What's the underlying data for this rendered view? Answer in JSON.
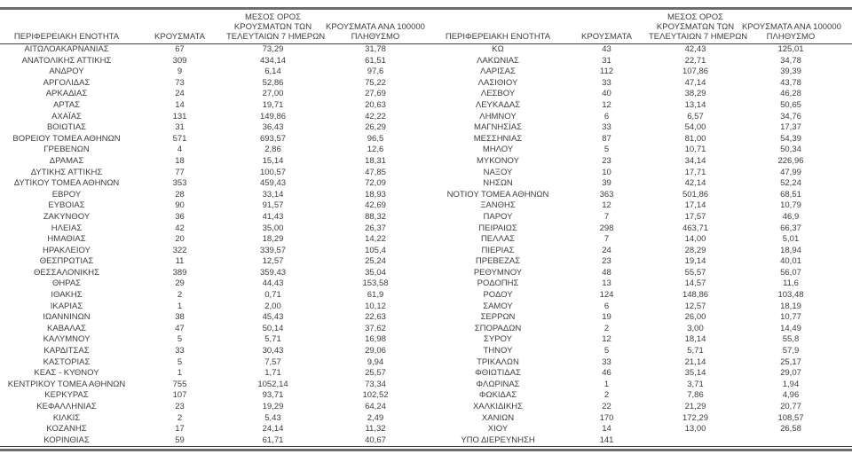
{
  "chart_data": {
    "type": "table",
    "title": "",
    "header": {
      "region": "ΠΕΡΙΦΕΡΕΙΑΚΗ ΕΝΟΤΗΤΑ",
      "cases": "ΚΡΟΥΣΜΑΤΑ",
      "avg7_line1": "ΜΕΣΟΣ ΟΡΟΣ",
      "avg7_line2": "ΚΡΟΥΣΜΑΤΩΝ ΤΩΝ",
      "avg7_line3": "ΤΕΛΕΥΤΑΙΩΝ 7 ΗΜΕΡΩΝ",
      "per100k_line1": "ΚΡΟΥΣΜΑΤΑ ΑΝΑ 100000",
      "per100k_line2": "ΠΛΗΘΥΣΜΟ"
    },
    "columns": [
      "ΠΕΡΙΦΕΡΕΙΑΚΗ ΕΝΟΤΗΤΑ",
      "ΚΡΟΥΣΜΑΤΑ",
      "ΜΕΣΟΣ ΟΡΟΣ ΚΡΟΥΣΜΑΤΩΝ ΤΩΝ ΤΕΛΕΥΤΑΙΩΝ 7 ΗΜΕΡΩΝ",
      "ΚΡΟΥΣΜΑΤΑ ΑΝΑ 100000 ΠΛΗΘΥΣΜΟ"
    ],
    "left_rows": [
      [
        "ΑΙΤΩΛΟΑΚΑΡΝΑΝΙΑΣ",
        "67",
        "73,29",
        "31,78"
      ],
      [
        "ΑΝΑΤΟΛΙΚΗΣ ΑΤΤΙΚΗΣ",
        "309",
        "434,14",
        "61,51"
      ],
      [
        "ΑΝΔΡΟΥ",
        "9",
        "6,14",
        "97,6"
      ],
      [
        "ΑΡΓΟΛΙΔΑΣ",
        "73",
        "52,86",
        "75,22"
      ],
      [
        "ΑΡΚΑΔΙΑΣ",
        "24",
        "27,00",
        "27,69"
      ],
      [
        "ΑΡΤΑΣ",
        "14",
        "19,71",
        "20,63"
      ],
      [
        "ΑΧΑΪΑΣ",
        "131",
        "149,86",
        "42,22"
      ],
      [
        "ΒΟΙΩΤΙΑΣ",
        "31",
        "36,43",
        "26,29"
      ],
      [
        "ΒΟΡΕΙΟΥ ΤΟΜΕΑ ΑΘΗΝΩΝ",
        "571",
        "693,57",
        "96,5"
      ],
      [
        "ΓΡΕΒΕΝΩΝ",
        "4",
        "2,86",
        "12,6"
      ],
      [
        "ΔΡΑΜΑΣ",
        "18",
        "15,14",
        "18,31"
      ],
      [
        "ΔΥΤΙΚΗΣ ΑΤΤΙΚΗΣ",
        "77",
        "100,57",
        "47,85"
      ],
      [
        "ΔΥΤΙΚΟΥ ΤΟΜΕΑ ΑΘΗΝΩΝ",
        "353",
        "459,43",
        "72,09"
      ],
      [
        "ΕΒΡΟΥ",
        "28",
        "33,14",
        "18,93"
      ],
      [
        "ΕΥΒΟΙΑΣ",
        "90",
        "91,57",
        "42,69"
      ],
      [
        "ΖΑΚΥΝΘΟΥ",
        "36",
        "41,43",
        "88,32"
      ],
      [
        "ΗΛΕΙΑΣ",
        "42",
        "35,00",
        "26,37"
      ],
      [
        "ΗΜΑΘΙΑΣ",
        "20",
        "18,29",
        "14,22"
      ],
      [
        "ΗΡΑΚΛΕΙΟΥ",
        "322",
        "339,57",
        "105,4"
      ],
      [
        "ΘΕΣΠΡΩΤΙΑΣ",
        "11",
        "12,57",
        "25,24"
      ],
      [
        "ΘΕΣΣΑΛΟΝΙΚΗΣ",
        "389",
        "359,43",
        "35,04"
      ],
      [
        "ΘΗΡΑΣ",
        "29",
        "44,43",
        "153,58"
      ],
      [
        "ΙΘΑΚΗΣ",
        "2",
        "0,71",
        "61,9"
      ],
      [
        "ΙΚΑΡΙΑΣ",
        "1",
        "2,00",
        "10,12"
      ],
      [
        "ΙΩΑΝΝΙΝΩΝ",
        "38",
        "45,43",
        "22,63"
      ],
      [
        "ΚΑΒΑΛΑΣ",
        "47",
        "50,14",
        "37,62"
      ],
      [
        "ΚΑΛΥΜΝΟΥ",
        "5",
        "5,71",
        "16,98"
      ],
      [
        "ΚΑΡΔΙΤΣΑΣ",
        "33",
        "30,43",
        "29,06"
      ],
      [
        "ΚΑΣΤΟΡΙΑΣ",
        "5",
        "7,57",
        "9,94"
      ],
      [
        "ΚΕΑΣ - ΚΥΘΝΟΥ",
        "1",
        "1,71",
        "25,57"
      ],
      [
        "ΚΕΝΤΡΙΚΟΥ ΤΟΜΕΑ ΑΘΗΝΩΝ",
        "755",
        "1052,14",
        "73,34"
      ],
      [
        "ΚΕΡΚΥΡΑΣ",
        "107",
        "93,71",
        "102,52"
      ],
      [
        "ΚΕΦΑΛΛΗΝΙΑΣ",
        "23",
        "19,29",
        "64,24"
      ],
      [
        "ΚΙΛΚΙΣ",
        "2",
        "5,43",
        "2,49"
      ],
      [
        "ΚΟΖΑΝΗΣ",
        "17",
        "24,14",
        "11,32"
      ],
      [
        "ΚΟΡΙΝΘΙΑΣ",
        "59",
        "61,71",
        "40,67"
      ]
    ],
    "right_rows": [
      [
        "ΚΩ",
        "43",
        "42,43",
        "125,01"
      ],
      [
        "ΛΑΚΩΝΙΑΣ",
        "31",
        "22,71",
        "34,78"
      ],
      [
        "ΛΑΡΙΣΑΣ",
        "112",
        "107,86",
        "39,39"
      ],
      [
        "ΛΑΣΙΘΙΟΥ",
        "33",
        "47,14",
        "43,78"
      ],
      [
        "ΛΕΣΒΟΥ",
        "40",
        "38,29",
        "46,28"
      ],
      [
        "ΛΕΥΚΑΔΑΣ",
        "12",
        "13,14",
        "50,65"
      ],
      [
        "ΛΗΜΝΟΥ",
        "6",
        "6,57",
        "34,76"
      ],
      [
        "ΜΑΓΝΗΣΙΑΣ",
        "33",
        "54,00",
        "17,37"
      ],
      [
        "ΜΕΣΣΗΝΙΑΣ",
        "87",
        "81,00",
        "54,39"
      ],
      [
        "ΜΗΛΟΥ",
        "5",
        "10,71",
        "50,34"
      ],
      [
        "ΜΥΚΟΝΟΥ",
        "23",
        "34,14",
        "226,96"
      ],
      [
        "ΝΑΞΟΥ",
        "10",
        "17,71",
        "47,99"
      ],
      [
        "ΝΗΣΩΝ",
        "39",
        "42,14",
        "52,24"
      ],
      [
        "ΝΟΤΙΟΥ ΤΟΜΕΑ ΑΘΗΝΩΝ",
        "363",
        "501,86",
        "68,51"
      ],
      [
        "ΞΑΝΘΗΣ",
        "12",
        "17,14",
        "10,79"
      ],
      [
        "ΠΑΡΟΥ",
        "7",
        "17,57",
        "46,9"
      ],
      [
        "ΠΕΙΡΑΙΩΣ",
        "298",
        "463,71",
        "66,37"
      ],
      [
        "ΠΕΛΛΑΣ",
        "7",
        "14,00",
        "5,01"
      ],
      [
        "ΠΙΕΡΙΑΣ",
        "24",
        "28,29",
        "18,94"
      ],
      [
        "ΠΡΕΒΕΖΑΣ",
        "23",
        "19,14",
        "40,01"
      ],
      [
        "ΡΕΘΥΜΝΟΥ",
        "48",
        "55,57",
        "56,07"
      ],
      [
        "ΡΟΔΟΠΗΣ",
        "13",
        "14,57",
        "11,6"
      ],
      [
        "ΡΟΔΟΥ",
        "124",
        "148,86",
        "103,48"
      ],
      [
        "ΣΑΜΟΥ",
        "6",
        "12,57",
        "18,19"
      ],
      [
        "ΣΕΡΡΩΝ",
        "19",
        "26,00",
        "10,77"
      ],
      [
        "ΣΠΟΡΑΔΩΝ",
        "2",
        "3,00",
        "14,49"
      ],
      [
        "ΣΥΡΟΥ",
        "12",
        "18,14",
        "55,8"
      ],
      [
        "ΤΗΝΟΥ",
        "5",
        "5,71",
        "57,9"
      ],
      [
        "ΤΡΙΚΑΛΩΝ",
        "33",
        "21,14",
        "25,17"
      ],
      [
        "ΦΘΙΩΤΙΔΑΣ",
        "46",
        "35,14",
        "29,07"
      ],
      [
        "ΦΛΩΡΙΝΑΣ",
        "1",
        "3,71",
        "1,94"
      ],
      [
        "ΦΩΚΙΔΑΣ",
        "2",
        "7,86",
        "4,96"
      ],
      [
        "ΧΑΛΚΙΔΙΚΗΣ",
        "22",
        "21,29",
        "20,77"
      ],
      [
        "ΧΑΝΙΩΝ",
        "170",
        "172,29",
        "108,57"
      ],
      [
        "ΧΙΟΥ",
        "14",
        "13,00",
        "26,58"
      ],
      [
        "ΥΠΟ ΔΙΕΡΕΥΝΗΣΗ",
        "141",
        "",
        ""
      ]
    ],
    "colors": {
      "text": "#3d3d3d",
      "thick_rule": "#6e6e6e",
      "thin_rule": "#3d3d3d",
      "background": "#ffffff"
    },
    "layout": {
      "row_count_per_group": 36,
      "groups": 2,
      "grid": "off"
    }
  }
}
